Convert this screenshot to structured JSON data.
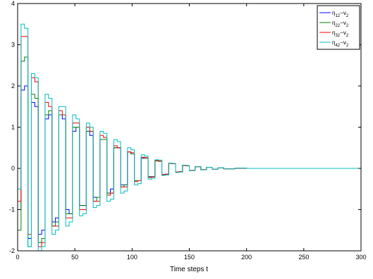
{
  "chart_data": {
    "type": "line",
    "xlabel": "Time steps t",
    "ylabel": "",
    "xlim": [
      0,
      300
    ],
    "ylim": [
      -2,
      4
    ],
    "xticks": [
      0,
      50,
      100,
      150,
      200,
      250,
      300
    ],
    "yticks": [
      -2,
      -1,
      0,
      1,
      2,
      3,
      4
    ],
    "grid": false,
    "legend": {
      "placement": "top-right"
    },
    "series": [
      {
        "name": "η12−v2",
        "label_base": "η",
        "label_sub": "12",
        "label_mid": "−v",
        "label_sub2": "2",
        "color": "#0000ff",
        "points": [
          [
            0,
            -1.0
          ],
          [
            3,
            1.9
          ],
          [
            6,
            2.0
          ],
          [
            9,
            -1.7
          ],
          [
            12,
            1.6
          ],
          [
            15,
            1.5
          ],
          [
            18,
            -1.6
          ],
          [
            21,
            -1.5
          ],
          [
            24,
            1.2
          ],
          [
            27,
            1.3
          ],
          [
            30,
            -1.3
          ],
          [
            33,
            -1.2
          ],
          [
            36,
            1.3
          ],
          [
            39,
            1.2
          ],
          [
            42,
            -1.0
          ],
          [
            45,
            -1.1
          ],
          [
            48,
            0.9
          ],
          [
            51,
            1.0
          ],
          [
            54,
            -0.9
          ],
          [
            57,
            -0.9
          ],
          [
            60,
            0.9
          ],
          [
            63,
            0.8
          ],
          [
            66,
            -0.7
          ],
          [
            69,
            -0.7
          ],
          [
            72,
            0.7
          ],
          [
            75,
            0.7
          ],
          [
            78,
            -0.6
          ],
          [
            81,
            -0.5
          ],
          [
            84,
            0.5
          ],
          [
            87,
            0.5
          ],
          [
            90,
            -0.4
          ],
          [
            93,
            -0.4
          ],
          [
            96,
            0.4
          ],
          [
            99,
            0.35
          ],
          [
            102,
            -0.3
          ],
          [
            105,
            -0.3
          ],
          [
            108,
            0.25
          ],
          [
            111,
            0.25
          ],
          [
            114,
            -0.2
          ],
          [
            117,
            -0.2
          ],
          [
            120,
            0.18
          ],
          [
            123,
            0.17
          ],
          [
            126,
            -0.15
          ],
          [
            129,
            -0.14
          ],
          [
            132,
            0.12
          ],
          [
            135,
            0.11
          ],
          [
            138,
            -0.09
          ],
          [
            141,
            -0.08
          ],
          [
            144,
            0.07
          ],
          [
            147,
            0.06
          ],
          [
            150,
            -0.05
          ],
          [
            155,
            0.04
          ],
          [
            160,
            -0.03
          ],
          [
            165,
            0.025
          ],
          [
            170,
            -0.02
          ],
          [
            175,
            0.015
          ],
          [
            180,
            -0.01
          ],
          [
            190,
            0.005
          ],
          [
            200,
            0
          ],
          [
            300,
            0
          ]
        ]
      },
      {
        "name": "η22−v2",
        "label_base": "η",
        "label_sub": "22",
        "label_mid": "−v",
        "label_sub2": "2",
        "color": "#008000",
        "points": [
          [
            0,
            -1.5
          ],
          [
            3,
            2.6
          ],
          [
            6,
            2.7
          ],
          [
            9,
            -1.9
          ],
          [
            12,
            1.8
          ],
          [
            15,
            1.7
          ],
          [
            18,
            -1.8
          ],
          [
            21,
            -1.7
          ],
          [
            24,
            1.3
          ],
          [
            27,
            1.4
          ],
          [
            30,
            -1.4
          ],
          [
            33,
            -1.3
          ],
          [
            36,
            1.3
          ],
          [
            39,
            1.3
          ],
          [
            42,
            -1.1
          ],
          [
            45,
            -1.1
          ],
          [
            48,
            1.0
          ],
          [
            51,
            1.0
          ],
          [
            54,
            -0.9
          ],
          [
            57,
            -0.9
          ],
          [
            60,
            0.9
          ],
          [
            63,
            0.9
          ],
          [
            66,
            -0.8
          ],
          [
            69,
            -0.7
          ],
          [
            72,
            0.7
          ],
          [
            75,
            0.7
          ],
          [
            78,
            -0.6
          ],
          [
            81,
            -0.6
          ],
          [
            84,
            0.5
          ],
          [
            87,
            0.5
          ],
          [
            90,
            -0.45
          ],
          [
            93,
            -0.4
          ],
          [
            96,
            0.4
          ],
          [
            99,
            0.35
          ],
          [
            102,
            -0.3
          ],
          [
            105,
            -0.3
          ],
          [
            108,
            0.26
          ],
          [
            111,
            0.25
          ],
          [
            114,
            -0.21
          ],
          [
            117,
            -0.2
          ],
          [
            120,
            0.18
          ],
          [
            123,
            0.17
          ],
          [
            126,
            -0.15
          ],
          [
            129,
            -0.14
          ],
          [
            132,
            0.12
          ],
          [
            135,
            0.11
          ],
          [
            138,
            -0.09
          ],
          [
            141,
            -0.08
          ],
          [
            144,
            0.07
          ],
          [
            147,
            0.06
          ],
          [
            150,
            -0.05
          ],
          [
            155,
            0.04
          ],
          [
            160,
            -0.03
          ],
          [
            165,
            0.025
          ],
          [
            170,
            -0.02
          ],
          [
            175,
            0.015
          ],
          [
            180,
            -0.01
          ],
          [
            190,
            0.005
          ],
          [
            200,
            0
          ],
          [
            300,
            0
          ]
        ]
      },
      {
        "name": "η32−v2",
        "label_base": "η",
        "label_sub": "32",
        "label_mid": "−v",
        "label_sub2": "2",
        "color": "#ff0000",
        "points": [
          [
            0,
            -0.8
          ],
          [
            3,
            3.2
          ],
          [
            6,
            3.2
          ],
          [
            9,
            -1.6
          ],
          [
            12,
            2.2
          ],
          [
            15,
            2.1
          ],
          [
            18,
            -1.9
          ],
          [
            21,
            -1.8
          ],
          [
            24,
            1.6
          ],
          [
            27,
            1.5
          ],
          [
            30,
            -1.4
          ],
          [
            33,
            -1.4
          ],
          [
            36,
            1.4
          ],
          [
            39,
            1.3
          ],
          [
            42,
            -1.2
          ],
          [
            45,
            -1.2
          ],
          [
            48,
            1.1
          ],
          [
            51,
            1.1
          ],
          [
            54,
            -1.0
          ],
          [
            57,
            -1.0
          ],
          [
            60,
            1.0
          ],
          [
            63,
            0.9
          ],
          [
            66,
            -0.8
          ],
          [
            69,
            -0.8
          ],
          [
            72,
            0.8
          ],
          [
            75,
            0.75
          ],
          [
            78,
            -0.65
          ],
          [
            81,
            -0.6
          ],
          [
            84,
            0.55
          ],
          [
            87,
            0.5
          ],
          [
            90,
            -0.45
          ],
          [
            93,
            -0.45
          ],
          [
            96,
            0.4
          ],
          [
            99,
            0.38
          ],
          [
            102,
            -0.32
          ],
          [
            105,
            -0.3
          ],
          [
            108,
            0.27
          ],
          [
            111,
            0.26
          ],
          [
            114,
            -0.22
          ],
          [
            117,
            -0.21
          ],
          [
            120,
            0.19
          ],
          [
            123,
            0.18
          ],
          [
            126,
            -0.15
          ],
          [
            129,
            -0.14
          ],
          [
            132,
            0.12
          ],
          [
            135,
            0.11
          ],
          [
            138,
            -0.09
          ],
          [
            141,
            -0.08
          ],
          [
            144,
            0.07
          ],
          [
            147,
            0.06
          ],
          [
            150,
            -0.05
          ],
          [
            155,
            0.04
          ],
          [
            160,
            -0.03
          ],
          [
            165,
            0.025
          ],
          [
            170,
            -0.02
          ],
          [
            175,
            0.015
          ],
          [
            180,
            -0.01
          ],
          [
            190,
            0.005
          ],
          [
            200,
            0
          ],
          [
            300,
            0
          ]
        ]
      },
      {
        "name": "η42−v2",
        "label_base": "η",
        "label_sub": "42",
        "label_mid": "−v",
        "label_sub2": "2",
        "color": "#00bfbf",
        "points": [
          [
            0,
            -0.5
          ],
          [
            3,
            3.5
          ],
          [
            6,
            3.4
          ],
          [
            9,
            -1.9
          ],
          [
            12,
            2.3
          ],
          [
            15,
            2.2
          ],
          [
            18,
            -2.0
          ],
          [
            21,
            -1.9
          ],
          [
            24,
            1.8
          ],
          [
            27,
            1.7
          ],
          [
            30,
            -1.6
          ],
          [
            33,
            -1.5
          ],
          [
            36,
            1.5
          ],
          [
            39,
            1.5
          ],
          [
            42,
            -1.4
          ],
          [
            45,
            -1.3
          ],
          [
            48,
            1.3
          ],
          [
            51,
            1.2
          ],
          [
            54,
            -1.15
          ],
          [
            57,
            -1.1
          ],
          [
            60,
            1.1
          ],
          [
            63,
            1.0
          ],
          [
            66,
            -0.95
          ],
          [
            69,
            -0.9
          ],
          [
            72,
            0.9
          ],
          [
            75,
            0.85
          ],
          [
            78,
            -0.8
          ],
          [
            81,
            -0.75
          ],
          [
            84,
            0.7
          ],
          [
            87,
            0.65
          ],
          [
            90,
            -0.6
          ],
          [
            93,
            -0.55
          ],
          [
            96,
            0.5
          ],
          [
            99,
            0.45
          ],
          [
            102,
            -0.4
          ],
          [
            105,
            -0.37
          ],
          [
            108,
            0.33
          ],
          [
            111,
            0.3
          ],
          [
            114,
            -0.26
          ],
          [
            117,
            -0.24
          ],
          [
            120,
            0.21
          ],
          [
            123,
            0.2
          ],
          [
            126,
            -0.17
          ],
          [
            129,
            -0.16
          ],
          [
            132,
            0.13
          ],
          [
            135,
            0.12
          ],
          [
            138,
            -0.1
          ],
          [
            141,
            -0.09
          ],
          [
            144,
            0.08
          ],
          [
            147,
            0.07
          ],
          [
            150,
            -0.055
          ],
          [
            155,
            0.045
          ],
          [
            160,
            -0.035
          ],
          [
            165,
            0.028
          ],
          [
            170,
            -0.022
          ],
          [
            175,
            0.017
          ],
          [
            180,
            -0.012
          ],
          [
            190,
            0.006
          ],
          [
            200,
            0
          ],
          [
            300,
            0
          ]
        ]
      }
    ]
  }
}
